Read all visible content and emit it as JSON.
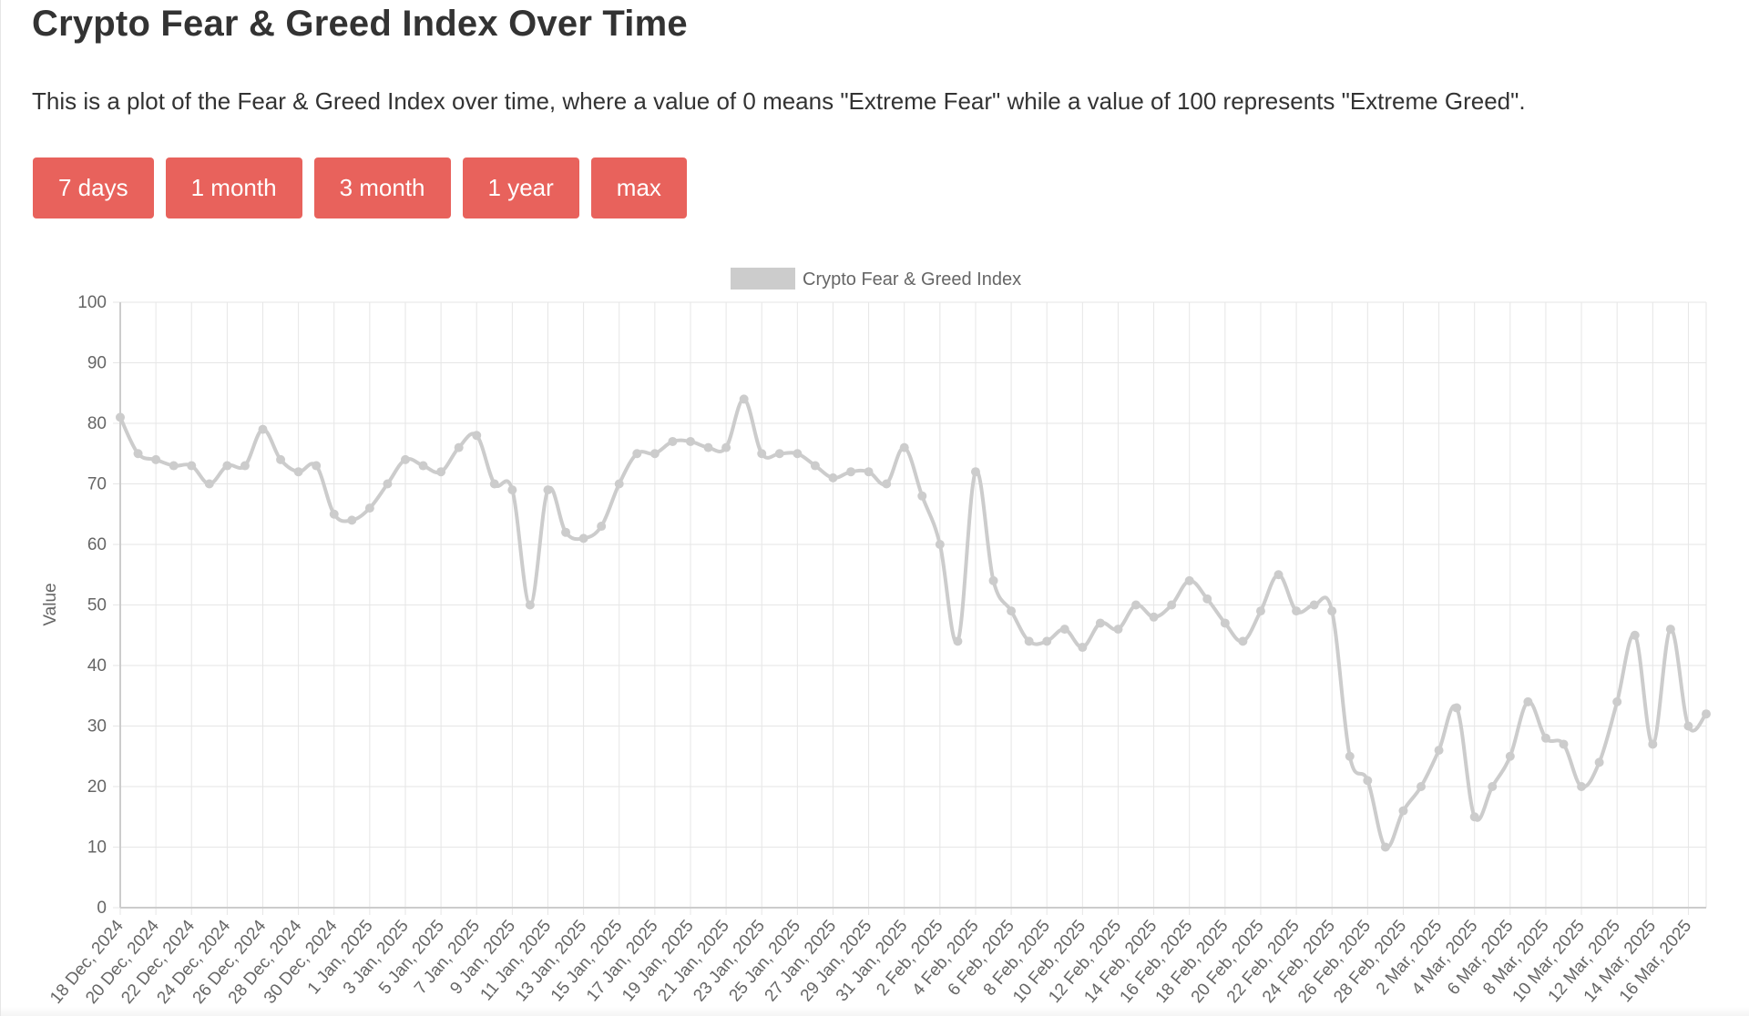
{
  "header": {
    "title": "Crypto Fear & Greed Index Over Time",
    "description": "This is a plot of the Fear & Greed Index over time, where a value of 0 means \"Extreme Fear\" while a value of 100 represents \"Extreme Greed\"."
  },
  "range_buttons": [
    {
      "label": "7 days"
    },
    {
      "label": "1 month"
    },
    {
      "label": "3 month"
    },
    {
      "label": "1 year"
    },
    {
      "label": "max"
    }
  ],
  "colors": {
    "button_bg": "#e8625c",
    "line": "#cccccc",
    "grid": "#e6e6e6",
    "axis": "#cccccc",
    "text": "#666666"
  },
  "chart_data": {
    "type": "line",
    "legend": "Crypto Fear & Greed Index",
    "legend_position": "top-center",
    "ylabel": "Value",
    "ylim": [
      0,
      100
    ],
    "yticks": [
      0,
      10,
      20,
      30,
      40,
      50,
      60,
      70,
      80,
      90,
      100
    ],
    "grid": true,
    "x_tick_labels": [
      "18 Dec, 2024",
      "20 Dec, 2024",
      "22 Dec, 2024",
      "24 Dec, 2024",
      "26 Dec, 2024",
      "28 Dec, 2024",
      "30 Dec, 2024",
      "1 Jan, 2025",
      "3 Jan, 2025",
      "5 Jan, 2025",
      "7 Jan, 2025",
      "9 Jan, 2025",
      "11 Jan, 2025",
      "13 Jan, 2025",
      "15 Jan, 2025",
      "17 Jan, 2025",
      "19 Jan, 2025",
      "21 Jan, 2025",
      "23 Jan, 2025",
      "25 Jan, 2025",
      "27 Jan, 2025",
      "29 Jan, 2025",
      "31 Jan, 2025",
      "2 Feb, 2025",
      "4 Feb, 2025",
      "6 Feb, 2025",
      "8 Feb, 2025",
      "10 Feb, 2025",
      "12 Feb, 2025",
      "14 Feb, 2025",
      "16 Feb, 2025",
      "18 Feb, 2025",
      "20 Feb, 2025",
      "22 Feb, 2025",
      "24 Feb, 2025",
      "26 Feb, 2025",
      "28 Feb, 2025",
      "2 Mar, 2025",
      "4 Mar, 2025",
      "6 Mar, 2025",
      "8 Mar, 2025",
      "10 Mar, 2025",
      "12 Mar, 2025",
      "14 Mar, 2025",
      "16 Mar, 2025"
    ],
    "series": [
      {
        "name": "Crypto Fear & Greed Index",
        "values": [
          81,
          75,
          74,
          73,
          73,
          70,
          73,
          73,
          79,
          74,
          72,
          73,
          65,
          64,
          66,
          70,
          74,
          73,
          72,
          76,
          78,
          70,
          69,
          50,
          69,
          62,
          61,
          63,
          70,
          75,
          75,
          77,
          77,
          76,
          76,
          84,
          75,
          75,
          75,
          73,
          71,
          72,
          72,
          70,
          76,
          68,
          60,
          44,
          72,
          54,
          49,
          44,
          44,
          46,
          43,
          47,
          46,
          50,
          48,
          50,
          54,
          51,
          47,
          44,
          49,
          55,
          49,
          50,
          49,
          25,
          21,
          10,
          16,
          20,
          26,
          33,
          15,
          20,
          25,
          34,
          28,
          27,
          20,
          24,
          34,
          45,
          27,
          46,
          30,
          32
        ]
      }
    ]
  }
}
